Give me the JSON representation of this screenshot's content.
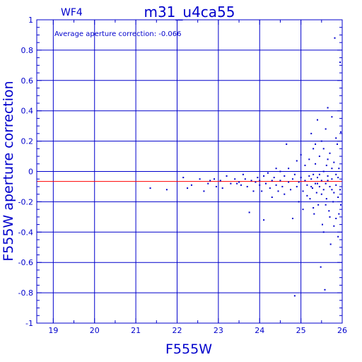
{
  "chart_data": {
    "type": "scatter",
    "panel_label": "WF4",
    "title": "m31_u4ca55",
    "annotation": "Average aperture correction: -0.066",
    "xlabel": "F555W",
    "ylabel": "F555W aperture correction",
    "xlim": [
      18.6,
      26.0
    ],
    "ylim": [
      -1.0,
      1.0
    ],
    "xticks": [
      19,
      20,
      21,
      22,
      23,
      24,
      25,
      26
    ],
    "yticks": [
      -1,
      -0.8,
      -0.6,
      -0.4,
      -0.2,
      0,
      0.2,
      0.4,
      0.6,
      0.8,
      1
    ],
    "ytick_labels": [
      "-1",
      "-0.8",
      "-0.6",
      "-0.4",
      "-0.2",
      "0",
      "0.2",
      "0.4",
      "0.6",
      "0.8",
      "1"
    ],
    "grid": true,
    "reference_line": {
      "y": -0.066,
      "color": "#ff0000"
    },
    "colors": {
      "axes": "#0000cc",
      "points": "#0000cc",
      "reference": "#ff0000",
      "background": "#ffffff"
    },
    "series": [
      {
        "points": [
          [
            21.35,
            -0.11
          ],
          [
            21.75,
            -0.12
          ],
          [
            22.15,
            -0.04
          ],
          [
            22.25,
            -0.11
          ],
          [
            22.35,
            -0.09
          ],
          [
            22.55,
            -0.05
          ],
          [
            22.65,
            -0.13
          ],
          [
            22.75,
            -0.08
          ],
          [
            22.8,
            -0.06
          ],
          [
            22.9,
            -0.05
          ],
          [
            22.95,
            -0.1
          ],
          [
            23.05,
            -0.06
          ],
          [
            23.1,
            -0.11
          ],
          [
            23.2,
            -0.03
          ],
          [
            23.3,
            -0.08
          ],
          [
            23.4,
            -0.05
          ],
          [
            23.45,
            -0.08
          ],
          [
            23.5,
            -0.07
          ],
          [
            23.55,
            -0.09
          ],
          [
            23.6,
            -0.02
          ],
          [
            23.65,
            -0.05
          ],
          [
            23.7,
            -0.1
          ],
          [
            23.75,
            -0.27
          ],
          [
            23.8,
            -0.06
          ],
          [
            23.85,
            -0.13
          ],
          [
            23.9,
            -0.07
          ],
          [
            23.95,
            -0.04
          ],
          [
            24.0,
            -0.06
          ],
          [
            24.0,
            -0.09
          ],
          [
            24.05,
            -0.13
          ],
          [
            24.1,
            -0.03
          ],
          [
            24.1,
            -0.32
          ],
          [
            24.15,
            -0.08
          ],
          [
            24.2,
            -0.01
          ],
          [
            24.25,
            -0.11
          ],
          [
            24.3,
            -0.06
          ],
          [
            24.3,
            -0.17
          ],
          [
            24.35,
            -0.04
          ],
          [
            24.4,
            -0.09
          ],
          [
            24.4,
            0.02
          ],
          [
            24.45,
            -0.13
          ],
          [
            24.5,
            -0.06
          ],
          [
            24.5,
            0.0
          ],
          [
            24.55,
            -0.1
          ],
          [
            24.6,
            -0.03
          ],
          [
            24.6,
            -0.15
          ],
          [
            24.65,
            0.18
          ],
          [
            24.7,
            -0.07
          ],
          [
            24.7,
            0.02
          ],
          [
            24.75,
            -0.12
          ],
          [
            24.8,
            -0.05
          ],
          [
            24.8,
            -0.31
          ],
          [
            24.85,
            -0.02
          ],
          [
            24.85,
            -0.82
          ],
          [
            24.9,
            -0.1
          ],
          [
            24.9,
            0.07
          ],
          [
            24.95,
            -0.07
          ],
          [
            24.95,
            -0.2
          ],
          [
            25.0,
            -0.04
          ],
          [
            25.0,
            0.11
          ],
          [
            25.05,
            -0.13
          ],
          [
            25.05,
            -0.25
          ],
          [
            25.1,
            -0.06
          ],
          [
            25.1,
            0.04
          ],
          [
            25.15,
            -0.09
          ],
          [
            25.15,
            -0.16
          ],
          [
            25.2,
            -0.03
          ],
          [
            25.2,
            0.08
          ],
          [
            25.22,
            -0.18
          ],
          [
            25.25,
            -0.05
          ],
          [
            25.25,
            0.25
          ],
          [
            25.28,
            -0.11
          ],
          [
            25.3,
            -0.02
          ],
          [
            25.3,
            0.15
          ],
          [
            25.32,
            -0.28
          ],
          [
            25.35,
            -0.08
          ],
          [
            25.35,
            0.05
          ],
          [
            25.38,
            -0.14
          ],
          [
            25.4,
            -0.04
          ],
          [
            25.4,
            0.34
          ],
          [
            25.42,
            -0.22
          ],
          [
            25.45,
            -0.1
          ],
          [
            25.45,
            0.1
          ],
          [
            25.48,
            -0.63
          ],
          [
            25.5,
            -0.06
          ],
          [
            25.5,
            0.2
          ],
          [
            25.52,
            -0.35
          ],
          [
            25.55,
            -0.12
          ],
          [
            25.55,
            0.0
          ],
          [
            25.58,
            -0.78
          ],
          [
            25.6,
            -0.08
          ],
          [
            25.6,
            0.28
          ],
          [
            25.62,
            -0.18
          ],
          [
            25.65,
            -0.03
          ],
          [
            25.65,
            0.42
          ],
          [
            25.68,
            -0.26
          ],
          [
            25.7,
            -0.1
          ],
          [
            25.7,
            0.12
          ],
          [
            25.72,
            -0.48
          ],
          [
            25.75,
            -0.05
          ],
          [
            25.75,
            0.36
          ],
          [
            25.78,
            -0.2
          ],
          [
            25.8,
            -0.14
          ],
          [
            25.8,
            0.06
          ],
          [
            25.82,
            0.88
          ],
          [
            25.85,
            -0.09
          ],
          [
            25.85,
            -0.31
          ],
          [
            25.88,
            0.18
          ],
          [
            25.9,
            -0.04
          ],
          [
            25.9,
            -0.43
          ],
          [
            25.92,
            0.02
          ],
          [
            25.95,
            -0.12
          ],
          [
            25.95,
            0.72
          ],
          [
            25.97,
            -0.22
          ],
          [
            25.98,
            0.26
          ],
          [
            25.4,
            -0.08
          ],
          [
            25.45,
            -0.02
          ],
          [
            25.5,
            -0.15
          ],
          [
            25.55,
            0.15
          ],
          [
            25.6,
            -0.22
          ],
          [
            25.65,
            0.08
          ],
          [
            25.7,
            -0.3
          ],
          [
            25.75,
            0.02
          ],
          [
            25.8,
            -0.36
          ],
          [
            25.85,
            0.22
          ],
          [
            25.9,
            -0.17
          ],
          [
            25.25,
            -0.1
          ],
          [
            25.3,
            -0.24
          ],
          [
            25.35,
            0.18
          ],
          [
            25.55,
            -0.4
          ],
          [
            25.65,
            -0.06
          ],
          [
            25.75,
            -0.12
          ],
          [
            25.85,
            -0.02
          ],
          [
            25.92,
            -0.28
          ],
          [
            25.62,
            0.04
          ]
        ]
      }
    ]
  }
}
